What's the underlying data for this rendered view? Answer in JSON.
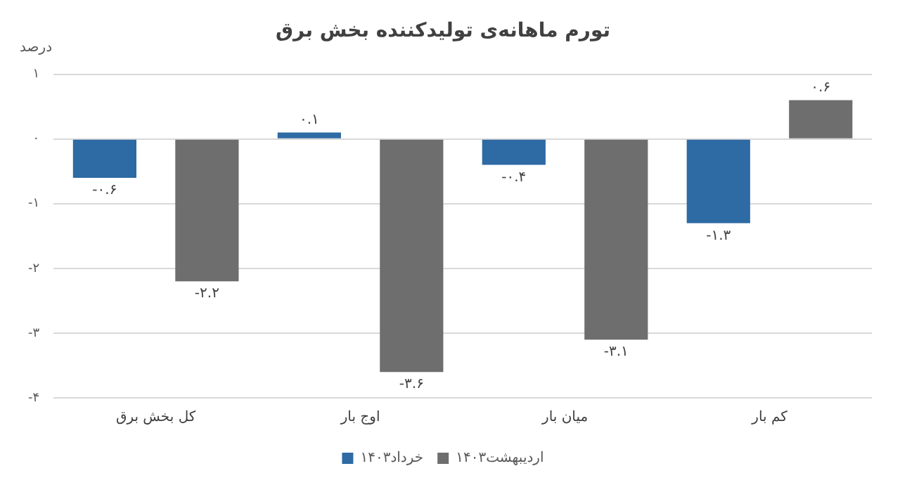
{
  "chart_data": {
    "type": "bar",
    "title": "تورم ماهانه‌ی تولیدکننده بخش برق",
    "ylabel": "درصد",
    "categories": [
      "کل بخش برق",
      "اوج بار",
      "میان بار",
      "کم بار"
    ],
    "series": [
      {
        "name": "خرداد۱۴۰۳",
        "color": "#2e6aa3",
        "values": [
          -0.6,
          0.1,
          -0.4,
          -1.3
        ],
        "value_labels": [
          "-۰.۶",
          "۰.۱",
          "-۰.۴",
          "-۱.۳"
        ]
      },
      {
        "name": "اردیبهشت۱۴۰۳",
        "color": "#6e6e6e",
        "values": [
          -2.2,
          -3.6,
          -3.1,
          0.6
        ],
        "value_labels": [
          "-۲.۲",
          "-۳.۶",
          "-۳.۱",
          "۰.۶"
        ]
      }
    ],
    "ylim": [
      -4,
      1
    ],
    "yticks": [
      {
        "value": 1,
        "label": "۱"
      },
      {
        "value": 0,
        "label": "۰"
      },
      {
        "value": -1,
        "label": "-۱"
      },
      {
        "value": -2,
        "label": "-۲"
      },
      {
        "value": -3,
        "label": "-۳"
      },
      {
        "value": -4,
        "label": "-۴"
      }
    ],
    "grid": "y",
    "legend": "bottom"
  }
}
